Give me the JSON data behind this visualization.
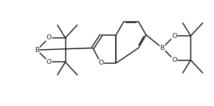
{
  "bg_color": "#ffffff",
  "line_color": "#1a1a1a",
  "line_width": 1.1,
  "font_size": 6.8,
  "figsize": [
    3.03,
    1.51
  ],
  "dpi": 100,
  "xlim": [
    0.0,
    10.0
  ],
  "ylim": [
    -0.2,
    5.0
  ]
}
